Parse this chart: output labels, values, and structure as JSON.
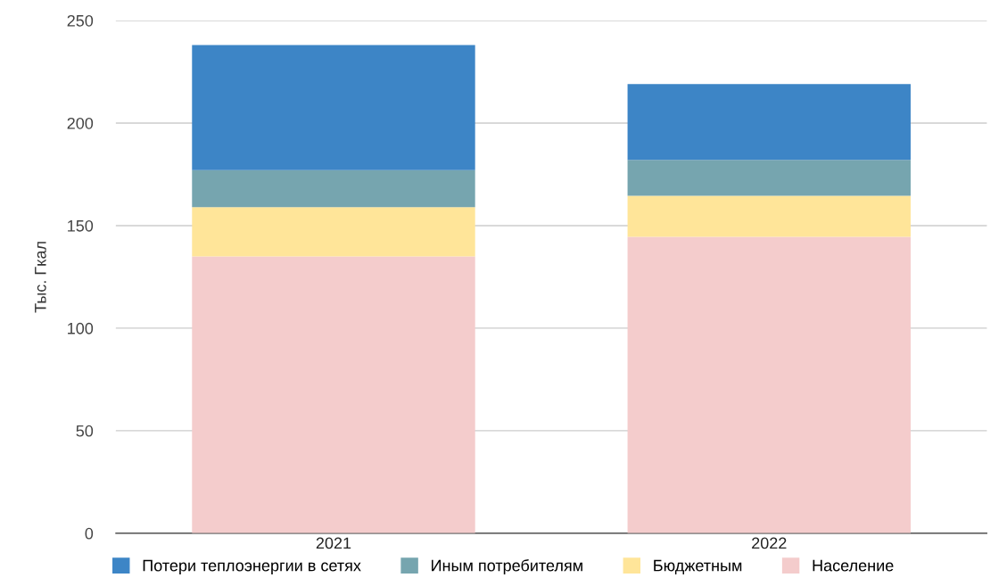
{
  "chart_data": {
    "type": "bar",
    "stacked": true,
    "ylabel": "Тыс. Гкал",
    "categories": [
      "2021",
      "2022"
    ],
    "series": [
      {
        "name": "Население",
        "color": "#f4cccc",
        "values": [
          135,
          144.5
        ]
      },
      {
        "name": "Бюджетным",
        "color": "#ffe599",
        "values": [
          24,
          20
        ]
      },
      {
        "name": "Иным потребителям",
        "color": "#76a5af",
        "values": [
          18,
          17.5
        ]
      },
      {
        "name": "Потери теплоэнергии в сетях",
        "color": "#3d85c6",
        "values": [
          61,
          37
        ]
      }
    ],
    "ylim": [
      0,
      250
    ],
    "yticks": [
      0,
      50,
      100,
      150,
      200,
      250
    ],
    "grid": "y",
    "legend": "bottom"
  }
}
